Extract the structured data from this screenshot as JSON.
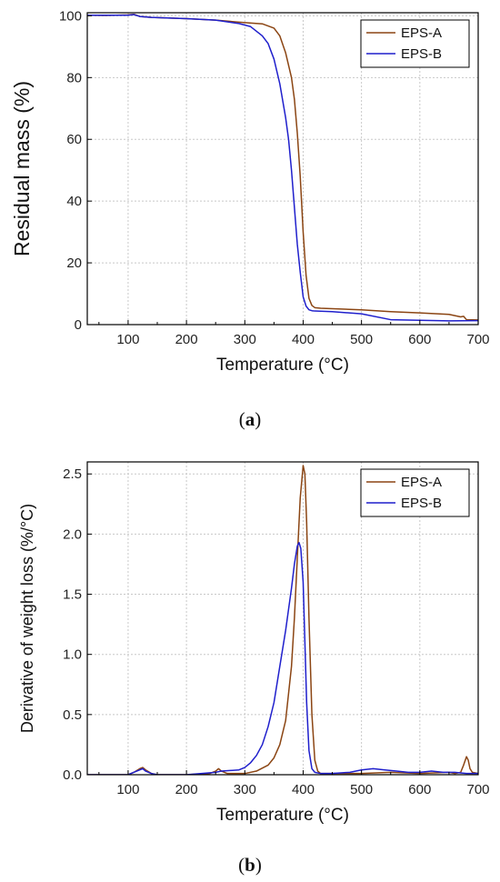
{
  "chart_data": [
    {
      "type": "line",
      "panel_label": "a",
      "xlabel": "Temperature (°C)",
      "ylabel": "Residual mass (%)",
      "xlim": [
        30,
        700
      ],
      "ylim": [
        0,
        101
      ],
      "xticks": [
        100,
        200,
        300,
        400,
        500,
        600,
        700
      ],
      "yticks": [
        0,
        20,
        40,
        60,
        80,
        100
      ],
      "grid": true,
      "legend_position": "top-right",
      "series": [
        {
          "name": "EPS-A",
          "color": "#8B4513",
          "x": [
            30,
            60,
            100,
            110,
            120,
            140,
            200,
            250,
            300,
            330,
            350,
            360,
            370,
            380,
            385,
            390,
            395,
            400,
            405,
            410,
            415,
            420,
            430,
            500,
            550,
            600,
            650,
            670,
            675,
            680,
            700
          ],
          "y": [
            100.2,
            100.1,
            100.3,
            100.5,
            99.8,
            99.5,
            99.1,
            98.6,
            97.8,
            97.4,
            96.0,
            93.5,
            88.0,
            80.0,
            73.0,
            62.0,
            48.0,
            30.0,
            16.0,
            8.5,
            6.2,
            5.5,
            5.3,
            4.8,
            4.2,
            3.8,
            3.3,
            2.5,
            2.7,
            1.6,
            1.5
          ]
        },
        {
          "name": "EPS-B",
          "color": "#1F1FCC",
          "x": [
            30,
            60,
            100,
            110,
            120,
            140,
            200,
            250,
            290,
            310,
            330,
            340,
            350,
            360,
            370,
            375,
            380,
            385,
            390,
            395,
            400,
            405,
            410,
            415,
            420,
            450,
            500,
            550,
            600,
            650,
            700
          ],
          "y": [
            100.2,
            100.2,
            100.2,
            100.4,
            99.8,
            99.5,
            99.1,
            98.6,
            97.5,
            96.5,
            93.5,
            91.0,
            86.0,
            78.0,
            67.0,
            60.0,
            50.0,
            38.0,
            26.0,
            17.0,
            9.0,
            6.0,
            4.8,
            4.5,
            4.4,
            4.2,
            3.5,
            1.6,
            1.4,
            1.2,
            1.3
          ]
        }
      ]
    },
    {
      "type": "line",
      "panel_label": "b",
      "xlabel": "Temperature (°C)",
      "ylabel": "Derivative of weight loss (%/°C)",
      "xlim": [
        30,
        700
      ],
      "ylim": [
        0,
        2.6
      ],
      "xticks": [
        100,
        200,
        300,
        400,
        500,
        600,
        700
      ],
      "yticks": [
        0.0,
        0.5,
        1.0,
        1.5,
        2.0,
        2.5
      ],
      "grid": true,
      "legend_position": "top-right",
      "series": [
        {
          "name": "EPS-A",
          "color": "#8B4513",
          "x": [
            30,
            100,
            110,
            120,
            125,
            130,
            140,
            150,
            200,
            240,
            250,
            255,
            260,
            270,
            300,
            320,
            340,
            350,
            360,
            370,
            380,
            385,
            390,
            395,
            400,
            403,
            406,
            410,
            415,
            420,
            425,
            430,
            500,
            550,
            600,
            650,
            660,
            670,
            675,
            680,
            683,
            686,
            690,
            700
          ],
          "y": [
            0.0,
            0.0,
            0.02,
            0.05,
            0.06,
            0.04,
            0.01,
            0.0,
            0.0,
            0.01,
            0.03,
            0.05,
            0.03,
            0.01,
            0.01,
            0.03,
            0.08,
            0.14,
            0.25,
            0.45,
            0.9,
            1.3,
            1.8,
            2.3,
            2.57,
            2.5,
            2.1,
            1.3,
            0.5,
            0.12,
            0.03,
            0.01,
            0.01,
            0.02,
            0.01,
            0.02,
            0.01,
            0.02,
            0.08,
            0.15,
            0.12,
            0.05,
            0.02,
            0.01
          ]
        },
        {
          "name": "EPS-B",
          "color": "#1F1FCC",
          "x": [
            30,
            100,
            110,
            120,
            125,
            130,
            140,
            150,
            200,
            250,
            260,
            290,
            300,
            310,
            320,
            330,
            340,
            350,
            360,
            370,
            380,
            385,
            390,
            393,
            396,
            400,
            403,
            406,
            410,
            415,
            420,
            430,
            450,
            480,
            500,
            520,
            540,
            560,
            580,
            600,
            620,
            640,
            660,
            680,
            700
          ],
          "y": [
            0.0,
            0.0,
            0.02,
            0.04,
            0.05,
            0.03,
            0.01,
            0.0,
            0.0,
            0.02,
            0.03,
            0.04,
            0.06,
            0.1,
            0.16,
            0.25,
            0.4,
            0.6,
            0.9,
            1.2,
            1.55,
            1.75,
            1.9,
            1.93,
            1.88,
            1.6,
            1.1,
            0.6,
            0.2,
            0.05,
            0.02,
            0.01,
            0.01,
            0.02,
            0.04,
            0.05,
            0.04,
            0.03,
            0.02,
            0.02,
            0.03,
            0.02,
            0.02,
            0.01,
            0.01
          ]
        }
      ]
    }
  ]
}
